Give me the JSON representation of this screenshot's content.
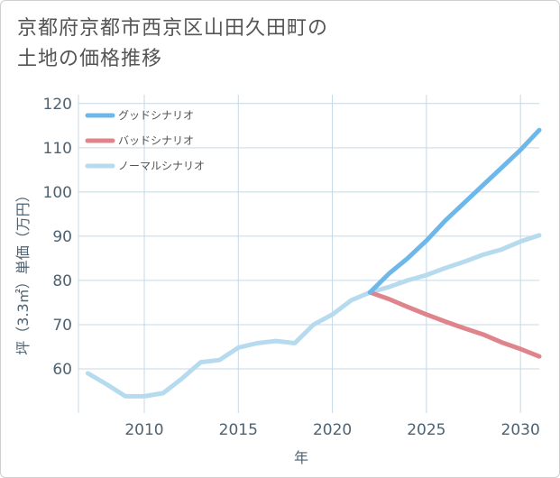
{
  "chart_data": {
    "type": "line",
    "title_lines": [
      "京都府京都市西京区山田久田町の",
      "土地の価格推移"
    ],
    "xlabel": "年",
    "ylabel": "坪（3.3㎡）単価（万円）",
    "xlim": [
      2006.5,
      2031
    ],
    "ylim": [
      50,
      122
    ],
    "xticks": [
      2010,
      2015,
      2020,
      2025,
      2030
    ],
    "yticks": [
      60,
      70,
      80,
      90,
      100,
      110,
      120
    ],
    "series": [
      {
        "name": "グッドシナリオ",
        "color": "#6cb8ea",
        "x": [
          2022,
          2023,
          2024,
          2025,
          2026,
          2027,
          2028,
          2029,
          2030,
          2031
        ],
        "y": [
          77.3,
          81.5,
          85.0,
          89.0,
          93.5,
          97.5,
          101.5,
          105.5,
          109.5,
          114.0
        ]
      },
      {
        "name": "バッドシナリオ",
        "color": "#e0848c",
        "x": [
          2022,
          2023,
          2024,
          2025,
          2026,
          2027,
          2028,
          2029,
          2030,
          2031
        ],
        "y": [
          77.3,
          75.8,
          74.0,
          72.3,
          70.7,
          69.2,
          67.8,
          66.0,
          64.5,
          62.8
        ]
      },
      {
        "name": "ノーマルシナリオ",
        "color": "#b7dbee",
        "x": [
          2007,
          2008,
          2009,
          2010,
          2011,
          2012,
          2013,
          2014,
          2015,
          2016,
          2017,
          2018,
          2019,
          2020,
          2021,
          2022,
          2023,
          2024,
          2025,
          2026,
          2027,
          2028,
          2029,
          2030,
          2031
        ],
        "y": [
          59.0,
          56.5,
          53.8,
          53.8,
          54.5,
          57.8,
          61.5,
          62.0,
          64.8,
          65.8,
          66.3,
          65.8,
          70.0,
          72.3,
          75.5,
          77.3,
          78.5,
          80.0,
          81.2,
          82.8,
          84.2,
          85.8,
          87.0,
          88.8,
          90.2
        ]
      }
    ],
    "legend_position": "top-left"
  }
}
